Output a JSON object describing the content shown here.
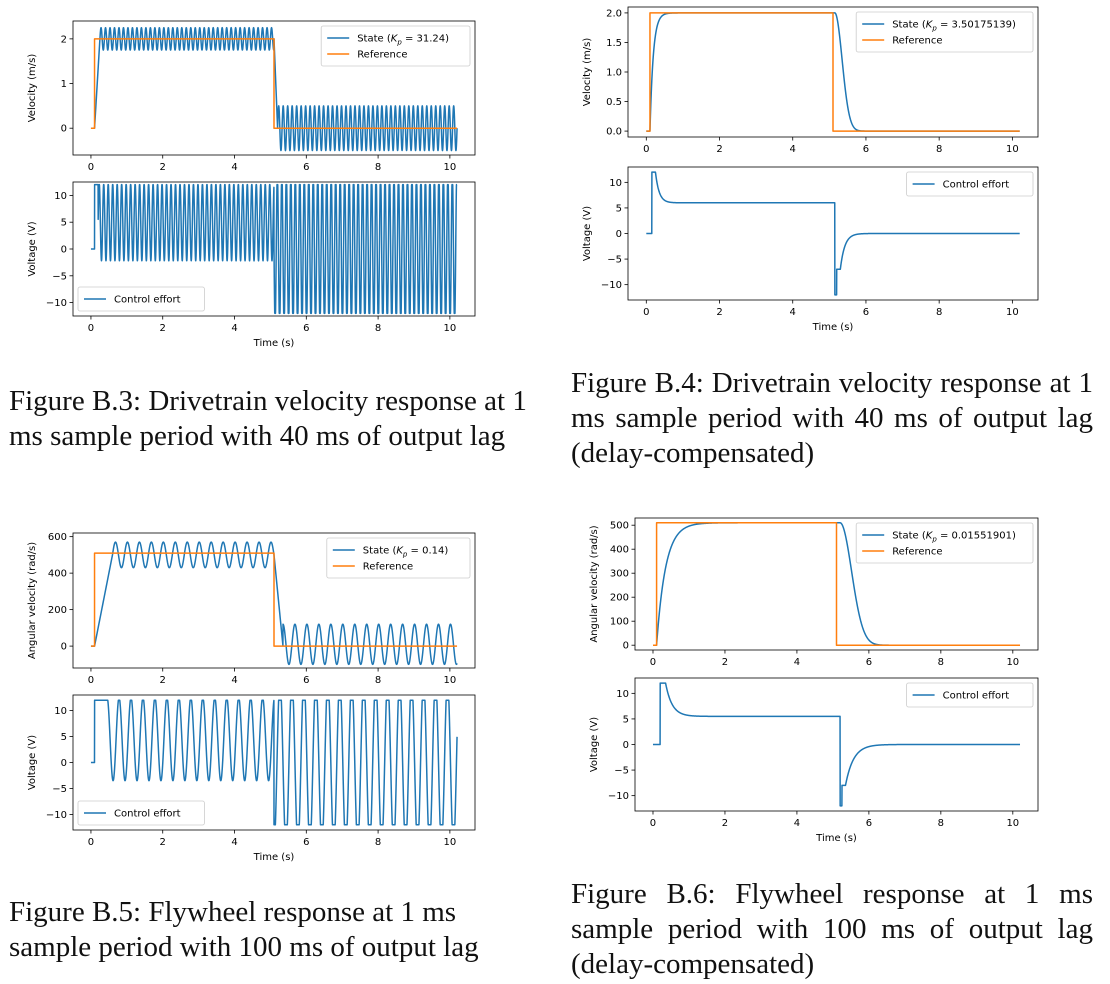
{
  "figures": [
    {
      "id": "b3",
      "caption": "Figure B.3: Drivetrain velocity response at 1 ms sample period with 40 ms of output lag",
      "top": {
        "ylabel": "Velocity (m/s)",
        "yticks": [
          "0",
          "1",
          "2"
        ],
        "legend": [
          "State (K_p = 31.24)",
          "Reference"
        ],
        "legend_pos": "upper-right"
      },
      "bottom": {
        "ylabel": "Voltage (V)",
        "yticks": [
          "−10",
          "−5",
          "0",
          "5",
          "10"
        ],
        "legend": [
          "Control effort"
        ],
        "legend_pos": "lower-left"
      },
      "xlabel": "Time (s)",
      "xticks": [
        "0",
        "2",
        "4",
        "6",
        "8",
        "10"
      ]
    },
    {
      "id": "b4",
      "caption": "Figure B.4: Drivetrain velocity response at 1 ms sample period with 40 ms of output lag (delay-compensated)",
      "top": {
        "ylabel": "Velocity (m/s)",
        "yticks": [
          "0.0",
          "0.5",
          "1.0",
          "1.5",
          "2.0"
        ],
        "legend": [
          "State (K_p = 3.50175139)",
          "Reference"
        ],
        "legend_pos": "upper-right"
      },
      "bottom": {
        "ylabel": "Voltage (V)",
        "yticks": [
          "−10",
          "−5",
          "0",
          "5",
          "10"
        ],
        "legend": [
          "Control effort"
        ],
        "legend_pos": "upper-right"
      },
      "xlabel": "Time (s)",
      "xticks": [
        "0",
        "2",
        "4",
        "6",
        "8",
        "10"
      ]
    },
    {
      "id": "b5",
      "caption": "Figure B.5: Flywheel response at 1 ms sample period with 100 ms of output lag",
      "top": {
        "ylabel": "Angular velocity (rad/s)",
        "yticks": [
          "0",
          "200",
          "400",
          "600"
        ],
        "legend": [
          "State (K_p = 0.14)",
          "Reference"
        ],
        "legend_pos": "upper-right"
      },
      "bottom": {
        "ylabel": "Voltage (V)",
        "yticks": [
          "−10",
          "−5",
          "0",
          "5",
          "10"
        ],
        "legend": [
          "Control effort"
        ],
        "legend_pos": "lower-left"
      },
      "xlabel": "Time (s)",
      "xticks": [
        "0",
        "2",
        "4",
        "6",
        "8",
        "10"
      ]
    },
    {
      "id": "b6",
      "caption": "Figure B.6: Flywheel response at 1 ms sample period with 100 ms of output lag (delay-compensated)",
      "top": {
        "ylabel": "Angular velocity (rad/s)",
        "yticks": [
          "0",
          "100",
          "200",
          "300",
          "400",
          "500"
        ],
        "legend": [
          "State (K_p = 0.01551901)",
          "Reference"
        ],
        "legend_pos": "upper-right"
      },
      "bottom": {
        "ylabel": "Voltage (V)",
        "yticks": [
          "−10",
          "−5",
          "0",
          "5",
          "10"
        ],
        "legend": [
          "Control effort"
        ],
        "legend_pos": "upper-right"
      },
      "xlabel": "Time (s)",
      "xticks": [
        "0",
        "2",
        "4",
        "6",
        "8",
        "10"
      ]
    }
  ],
  "colors": {
    "state": "#1f77b4",
    "reference": "#ff7f0e"
  },
  "chart_data": [
    {
      "type": "line",
      "figure": "B.3",
      "panel": "top",
      "xlim": [
        -0.5,
        10.7
      ],
      "ylim": [
        -0.6,
        2.4
      ],
      "series": [
        {
          "name": "State (K_p = 31.24)",
          "desc": "oscillates between about 1.75 and 2.25 while reference is 2, then between about -0.5 and 0.5 after t=5.1"
        },
        {
          "name": "Reference",
          "points": [
            [
              0,
              0
            ],
            [
              0.1,
              0
            ],
            [
              0.1,
              2
            ],
            [
              5.1,
              2
            ],
            [
              5.1,
              0
            ],
            [
              10.2,
              0
            ]
          ]
        }
      ]
    },
    {
      "type": "line",
      "figure": "B.3",
      "panel": "bottom",
      "xlim": [
        -0.5,
        10.7
      ],
      "ylim": [
        -12.5,
        12.5
      ],
      "series": [
        {
          "name": "Control effort",
          "desc": "oscillates between about -2 and 12 until t=5.1, then between -12 and 12"
        }
      ]
    },
    {
      "type": "line",
      "figure": "B.4",
      "panel": "top",
      "xlim": [
        -0.5,
        10.7
      ],
      "ylim": [
        -0.1,
        2.1
      ],
      "series": [
        {
          "name": "State (K_p = 3.50175139)",
          "desc": "rises from 0 to 2 by t≈0.6, decays to 0 by t≈6"
        },
        {
          "name": "Reference",
          "points": [
            [
              0,
              0
            ],
            [
              0.1,
              0
            ],
            [
              0.1,
              2
            ],
            [
              5.1,
              2
            ],
            [
              5.1,
              0
            ],
            [
              10.2,
              0
            ]
          ]
        }
      ]
    },
    {
      "type": "line",
      "figure": "B.4",
      "panel": "bottom",
      "xlim": [
        -0.5,
        10.7
      ],
      "ylim": [
        -13,
        13
      ],
      "series": [
        {
          "name": "Control effort",
          "desc": "spike to 12 at t≈0.15, settles to 6, drops to -12 at t=5.1, returns to 0"
        }
      ]
    },
    {
      "type": "line",
      "figure": "B.5",
      "panel": "top",
      "xlim": [
        -0.5,
        10.7
      ],
      "ylim": [
        -120,
        620
      ],
      "series": [
        {
          "name": "State (K_p = 0.14)",
          "desc": "rises to about 500 oscillating between 430 and 570, then oscillates between -100 and 120 after t=5.1"
        },
        {
          "name": "Reference",
          "points": [
            [
              0,
              0
            ],
            [
              0.1,
              0
            ],
            [
              0.1,
              510
            ],
            [
              5.1,
              510
            ],
            [
              5.1,
              0
            ],
            [
              10.2,
              0
            ]
          ]
        }
      ]
    },
    {
      "type": "line",
      "figure": "B.5",
      "panel": "bottom",
      "xlim": [
        -0.5,
        10.7
      ],
      "ylim": [
        -13,
        13
      ],
      "series": [
        {
          "name": "Control effort",
          "desc": "oscillates between about -3 and 12, then between -12 and 12 after t=5.1"
        }
      ]
    },
    {
      "type": "line",
      "figure": "B.6",
      "panel": "top",
      "xlim": [
        -0.5,
        10.7
      ],
      "ylim": [
        -20,
        530
      ],
      "series": [
        {
          "name": "State (K_p = 0.01551901)",
          "desc": "rises to about 510 by t≈1.2, decays to 0 by t≈6.2"
        },
        {
          "name": "Reference",
          "points": [
            [
              0,
              0
            ],
            [
              0.1,
              0
            ],
            [
              0.1,
              510
            ],
            [
              5.1,
              510
            ],
            [
              5.1,
              0
            ],
            [
              10.2,
              0
            ]
          ]
        }
      ]
    },
    {
      "type": "line",
      "figure": "B.6",
      "panel": "bottom",
      "xlim": [
        -0.5,
        10.7
      ],
      "ylim": [
        -13,
        13
      ],
      "series": [
        {
          "name": "Control effort",
          "desc": "jumps to 12 at t≈0.2, settles near 5.5, drops to -12 at t=5.2, returns to 0"
        }
      ]
    }
  ]
}
